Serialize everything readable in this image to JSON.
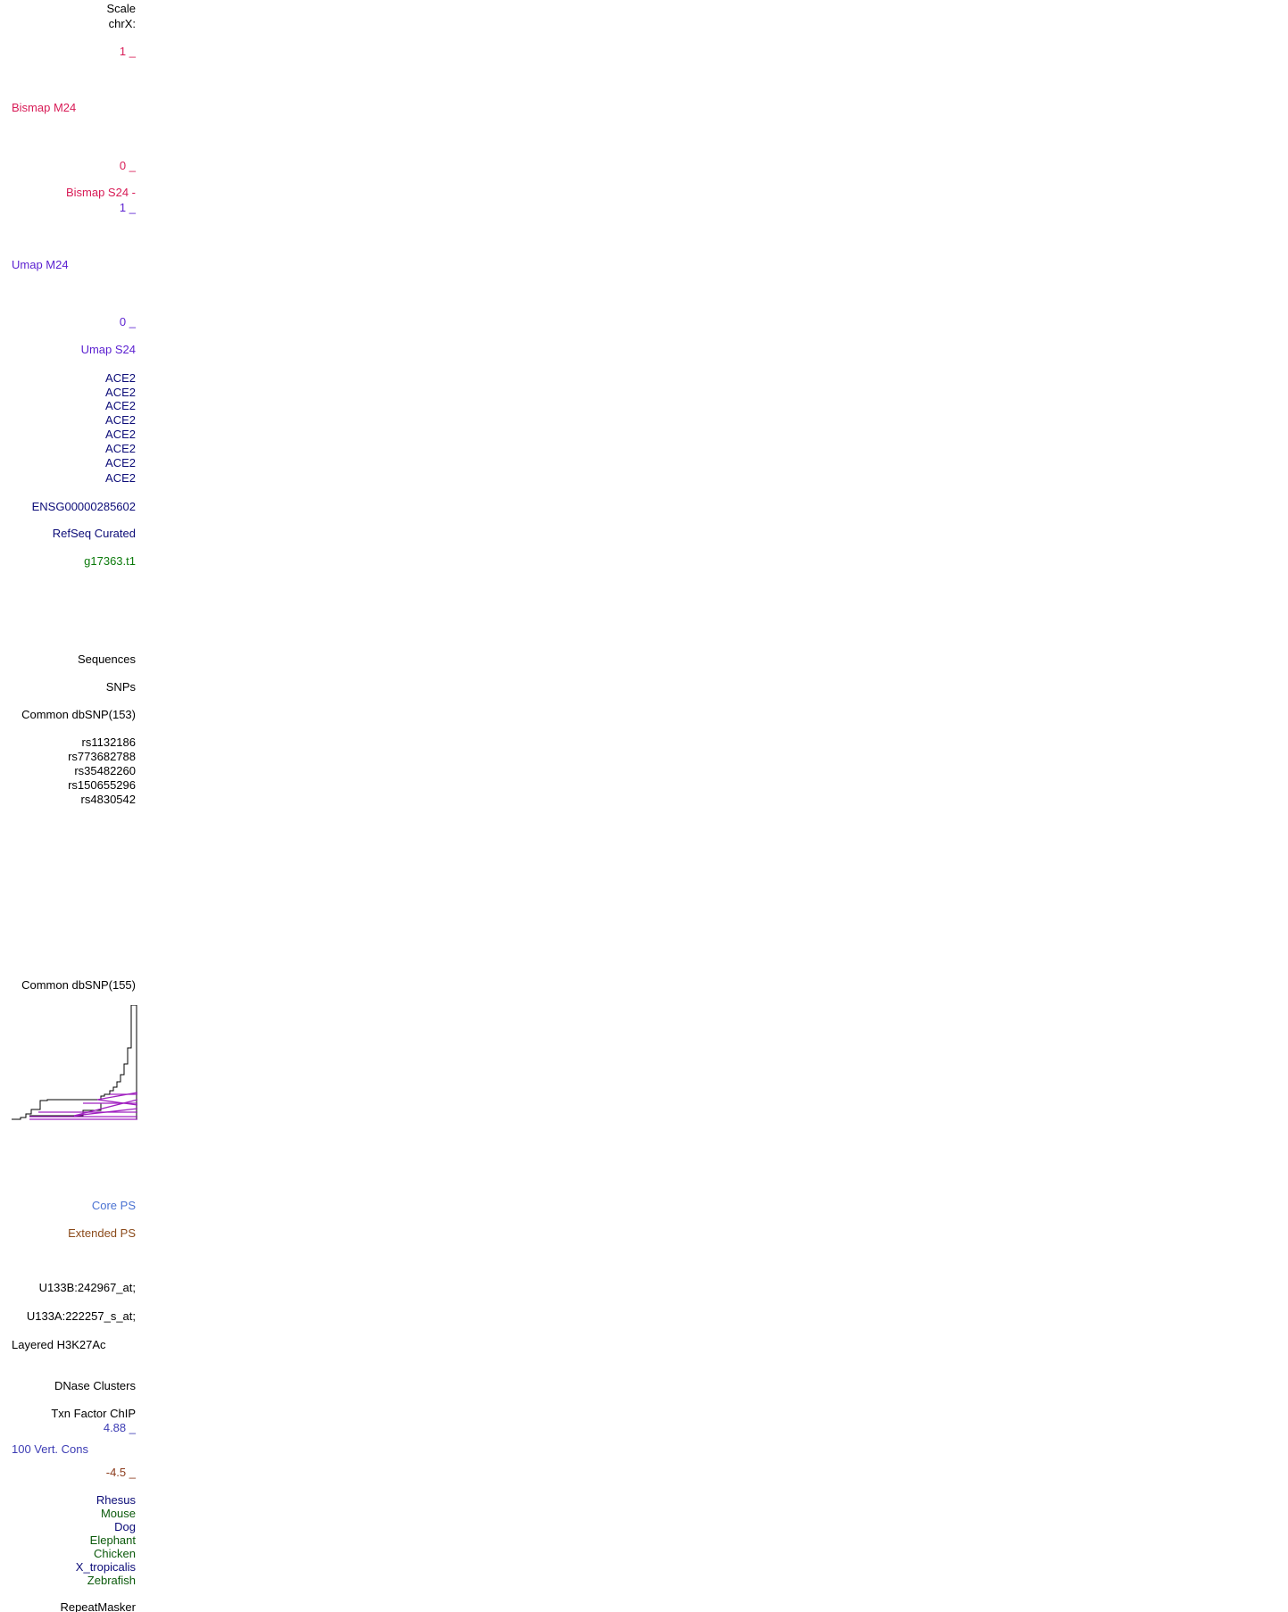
{
  "labels": [
    "Scale",
    "chrX:",
    "1 _",
    "Bismap M24",
    "0 _",
    "Bismap S24 -",
    "1 _",
    "Umap M24",
    "0 _",
    "Umap S24",
    "ACE2",
    "ACE2",
    "ACE2",
    "ACE2",
    "ACE2",
    "ACE2",
    "ACE2",
    "ACE2",
    "ENSG00000285602",
    "RefSeq Curated",
    "g17363.t1",
    "Sequences",
    "SNPs",
    "Common dbSNP(153)",
    "rs1132186",
    "rs773682788",
    "rs35482260",
    "rs150655296",
    "rs4830542",
    "Common dbSNP(155)",
    "Core PS",
    "Extended PS",
    "U133B:242967_at;",
    "U133A:222257_s_at;",
    "Layered H3K27Ac",
    "DNase Clusters",
    "Txn Factor ChIP",
    "4.88 _",
    "100 Vert. Cons",
    "-4.5 _",
    "Rhesus",
    "Mouse",
    "Dog",
    "Elephant",
    "Chicken",
    "X_tropicalis",
    "Zebrafish",
    "RepeatMasker"
  ]
}
